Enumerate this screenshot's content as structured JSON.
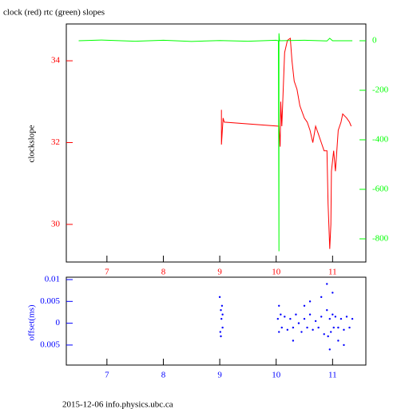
{
  "chart_data": [
    {
      "type": "line",
      "title": "clock (red) rtc (green) slopes",
      "ylabel": "clockslope",
      "xlim": [
        6.28,
        11.59
      ],
      "xticks": [
        7,
        8,
        9,
        10,
        11
      ],
      "ylim": [
        29.08,
        34.9
      ],
      "yticks": [
        30,
        32,
        34
      ],
      "y2lim": [
        -893.5,
        67.7
      ],
      "y2ticks": [
        0,
        -200,
        -400,
        -600,
        -800
      ],
      "axis_color": "#ff0000",
      "y2_color": "#00ff00",
      "series": [
        {
          "color": "#ff0000",
          "x": [
            9.03,
            9.03,
            9.06,
            9.08,
            10.05,
            10.07,
            10.08,
            10.1,
            10.15,
            10.2,
            10.25,
            10.28,
            10.32,
            10.37,
            10.42,
            10.5,
            10.55,
            10.6,
            10.65,
            10.7,
            10.75,
            10.8,
            10.85,
            10.9,
            10.92,
            10.95,
            10.97,
            10.98,
            11.02,
            11.05,
            11.1,
            11.15,
            11.18,
            11.25,
            11.3,
            11.33
          ],
          "values": [
            32.8,
            31.95,
            32.6,
            32.5,
            32.4,
            31.9,
            33.0,
            32.4,
            34.2,
            34.5,
            34.55,
            34.0,
            33.5,
            33.3,
            32.9,
            32.6,
            32.5,
            32.3,
            32.0,
            32.4,
            32.2,
            32.0,
            31.8,
            31.8,
            30.5,
            29.4,
            30.0,
            31.3,
            31.8,
            31.3,
            32.3,
            32.5,
            32.7,
            32.6,
            32.5,
            32.4
          ]
        },
        {
          "color": "#00ff00",
          "axis": "y2",
          "x": [
            6.5,
            6.9,
            7.5,
            8.0,
            8.5,
            9.0,
            9.5,
            10.0,
            10.04,
            10.05,
            10.05,
            10.06,
            10.5,
            10.9,
            10.95,
            11.0,
            11.35
          ],
          "values": [
            0,
            3,
            -2,
            2,
            -3,
            1,
            -2,
            2,
            0,
            -850,
            30,
            0,
            2,
            -1,
            10,
            0,
            0
          ]
        }
      ]
    },
    {
      "type": "scatter",
      "ylabel": "offset(ms)",
      "xlim": [
        6.28,
        11.59
      ],
      "xticks": [
        7,
        8,
        9,
        10,
        11
      ],
      "ylim": [
        -0.00959,
        0.01055
      ],
      "yticks": [
        0.01,
        0.005,
        0,
        {
          "value": -0.005,
          "label": "0.005"
        }
      ],
      "axis_color": "#0000ff",
      "series": [
        {
          "color": "#0000ff",
          "x": [
            9.0,
            9.01,
            9.02,
            9.02,
            9.03,
            9.04,
            9.05,
            9.05,
            10.03,
            10.05,
            10.08,
            10.1,
            10.15,
            10.2,
            10.25,
            10.3,
            10.35,
            10.4,
            10.45,
            10.5,
            10.55,
            10.6,
            10.65,
            10.7,
            10.75,
            10.8,
            10.85,
            10.9,
            10.92,
            10.95,
            10.97,
            11.0,
            11.02,
            11.05,
            11.1,
            11.15,
            11.2,
            11.25,
            11.3,
            11.35,
            10.05,
            10.3,
            10.6,
            10.9,
            10.95,
            11.0,
            11.2,
            10.5,
            10.8,
            11.1
          ],
          "values": [
            0.006,
            -0.002,
            0.003,
            -0.003,
            0.001,
            0.004,
            -0.001,
            0.002,
            0.001,
            -0.002,
            0.002,
            -0.001,
            0.0015,
            -0.0015,
            0.001,
            -0.001,
            0.002,
            0.0,
            -0.002,
            0.001,
            -0.001,
            0.002,
            -0.0015,
            0.0005,
            -0.001,
            0.0015,
            -0.0025,
            0.003,
            -0.003,
            0.001,
            -0.002,
            0.002,
            -0.001,
            0.0015,
            -0.001,
            0.001,
            -0.0015,
            0.0015,
            -0.001,
            0.001,
            0.004,
            -0.004,
            0.005,
            0.009,
            -0.006,
            0.007,
            -0.005,
            0.004,
            0.006,
            -0.004
          ]
        }
      ]
    }
  ],
  "footer": "2015-12-06 info.physics.ubc.ca"
}
